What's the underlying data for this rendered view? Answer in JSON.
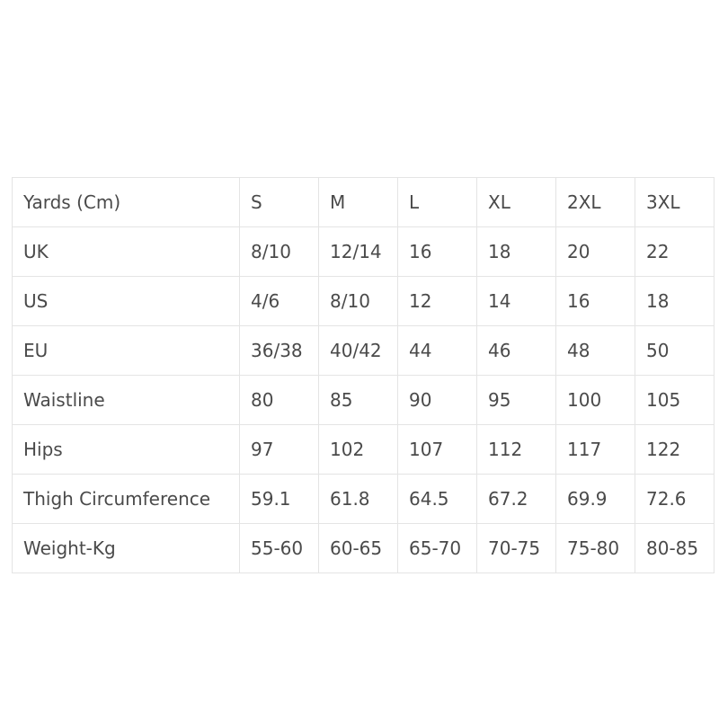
{
  "table": {
    "header": [
      "Yards (Cm)",
      "S",
      "M",
      "L",
      "XL",
      "2XL",
      "3XL"
    ],
    "rows": [
      [
        "UK",
        "8/10",
        "12/14",
        "16",
        "18",
        "20",
        "22"
      ],
      [
        "US",
        "4/6",
        "8/10",
        "12",
        "14",
        "16",
        "18"
      ],
      [
        "EU",
        "36/38",
        "40/42",
        "44",
        "46",
        "48",
        "50"
      ],
      [
        "Waistline",
        "80",
        "85",
        "90",
        "95",
        "100",
        "105"
      ],
      [
        "Hips",
        "97",
        "102",
        "107",
        "112",
        "117",
        "122"
      ],
      [
        "Thigh Circumference",
        "59.1",
        "61.8",
        "64.5",
        "67.2",
        "69.9",
        "72.6"
      ],
      [
        "Weight-Kg",
        "55-60",
        "60-65",
        "65-70",
        "70-75",
        "75-80",
        "80-85"
      ]
    ]
  }
}
